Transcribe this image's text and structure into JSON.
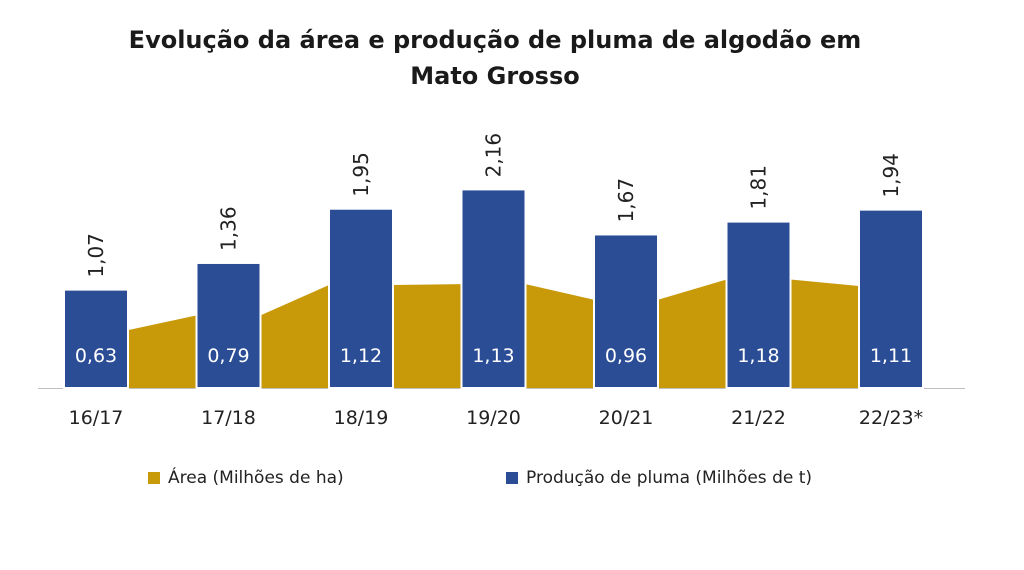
{
  "colors": {
    "area": "#c89a0a",
    "production": "#2b4d96",
    "bar_border": "#ffffff",
    "axis": "#bfbfbf"
  },
  "chart_data": {
    "type": "bar",
    "title_lines": [
      "Evolução da área e produção de pluma de algodão em",
      "Mato Grosso"
    ],
    "categories": [
      "16/17",
      "17/18",
      "18/19",
      "19/20",
      "20/21",
      "21/22",
      "22/23*"
    ],
    "series": [
      {
        "name": "Produção de pluma (Milhões de t)",
        "type": "bar",
        "values": [
          1.07,
          1.36,
          1.95,
          2.16,
          1.67,
          1.81,
          1.94
        ],
        "labels": [
          "1,07",
          "1,36",
          "1,95",
          "2,16",
          "1,67",
          "1,81",
          "1,94"
        ]
      },
      {
        "name": "Área (Milhões de ha)",
        "type": "area",
        "values": [
          0.63,
          0.79,
          1.12,
          1.13,
          0.96,
          1.18,
          1.11
        ],
        "labels": [
          "0,63",
          "0,79",
          "1,12",
          "1,13",
          "0,96",
          "1,18",
          "1,11"
        ]
      }
    ],
    "ylim": [
      0,
      2.3
    ],
    "grid": false,
    "legend": "bottom"
  },
  "legend": {
    "area_label": "Área (Milhões de ha)",
    "production_label": "Produção de pluma (Milhões de t)"
  }
}
